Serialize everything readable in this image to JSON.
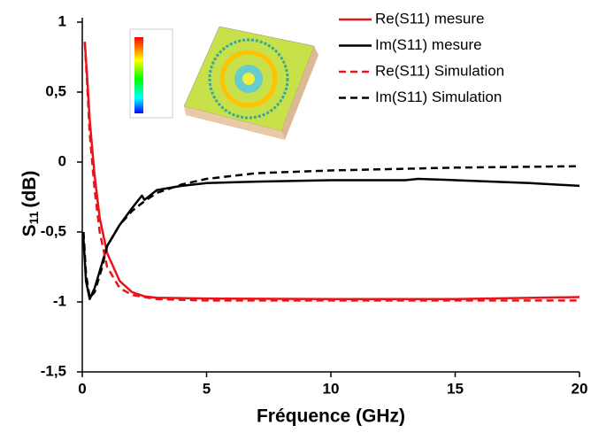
{
  "chart_data": {
    "type": "line",
    "ylabel": {
      "symbol": "S",
      "subscript": "11",
      "unit": "(dB)"
    },
    "xlabel": "Fréquence (GHz)",
    "xlim": [
      0,
      20
    ],
    "xticks": [
      0,
      5,
      10,
      15,
      20
    ],
    "ylim": [
      -1.5,
      1
    ],
    "yticks": [
      {
        "value": -1.5,
        "label": "-1,5"
      },
      -1,
      {
        "value": -0.5,
        "label": "-0,5"
      },
      0,
      {
        "value": 0.5,
        "label": "0,5"
      },
      1
    ],
    "series": [
      {
        "name": "Re(S11) mesure",
        "color": "#e8141b",
        "dash": false,
        "x": [
          0.1,
          0.2,
          0.3,
          0.5,
          0.7,
          1.0,
          1.5,
          2,
          2.5,
          3,
          5,
          10,
          15,
          20
        ],
        "values": [
          0.86,
          0.6,
          0.3,
          -0.1,
          -0.4,
          -0.65,
          -0.85,
          -0.93,
          -0.96,
          -0.97,
          -0.975,
          -0.98,
          -0.98,
          -0.965
        ]
      },
      {
        "name": "Im(S11) mesure",
        "color": "#000000",
        "dash": false,
        "x": [
          0.05,
          0.15,
          0.3,
          0.5,
          0.8,
          1.0,
          1.5,
          2,
          2.4,
          2.5,
          3,
          4,
          5,
          7,
          10,
          13,
          13.5,
          15,
          18,
          20
        ],
        "values": [
          -0.55,
          -0.85,
          -0.98,
          -0.9,
          -0.72,
          -0.6,
          -0.45,
          -0.33,
          -0.24,
          -0.27,
          -0.2,
          -0.17,
          -0.15,
          -0.14,
          -0.13,
          -0.13,
          -0.12,
          -0.13,
          -0.15,
          -0.17
        ]
      },
      {
        "name": "Re(S11) Simulation",
        "color": "#e8141b",
        "dash": true,
        "x": [
          0.1,
          0.2,
          0.3,
          0.5,
          0.7,
          1.0,
          1.5,
          2,
          3,
          5,
          10,
          20
        ],
        "values": [
          0.85,
          0.55,
          0.2,
          -0.2,
          -0.5,
          -0.75,
          -0.9,
          -0.95,
          -0.98,
          -0.99,
          -0.99,
          -0.99
        ]
      },
      {
        "name": "Im(S11) Simulation",
        "color": "#000000",
        "dash": true,
        "x": [
          0.05,
          0.15,
          0.3,
          0.5,
          0.8,
          1.0,
          1.5,
          2,
          2.5,
          3,
          4,
          5,
          7,
          10,
          15,
          20
        ],
        "values": [
          -0.5,
          -0.8,
          -0.97,
          -0.93,
          -0.75,
          -0.6,
          -0.45,
          -0.35,
          -0.28,
          -0.22,
          -0.16,
          -0.12,
          -0.08,
          -0.06,
          -0.04,
          -0.03
        ]
      }
    ]
  }
}
